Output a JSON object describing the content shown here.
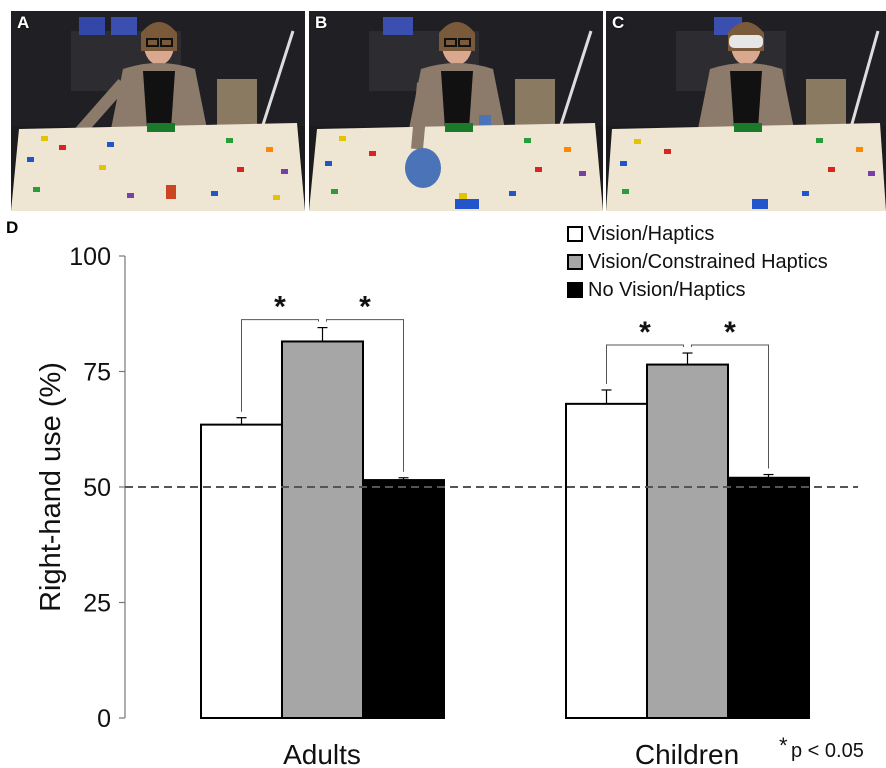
{
  "panels": [
    {
      "label": "A",
      "condition": "vision"
    },
    {
      "label": "B",
      "condition": "glove"
    },
    {
      "label": "C",
      "condition": "blindfold"
    }
  ],
  "chart_panel_label": "D",
  "significance_note": {
    "star": "*",
    "text": "p < 0.05"
  },
  "colors": {
    "vision_haptics": "#ffffff",
    "constrained": "#a6a6a6",
    "no_vision": "#000000",
    "reference": "#555555"
  },
  "chart_data": {
    "type": "bar",
    "categories": [
      "Adults",
      "Children"
    ],
    "ylabel": "Right-hand use (%)",
    "ylim": [
      0,
      100
    ],
    "yticks": [
      0,
      25,
      50,
      75,
      100
    ],
    "reference_line": 50,
    "legend_position": "top-right",
    "series": [
      {
        "name": "Vision/Haptics",
        "values": [
          63.5,
          68
        ],
        "errors": [
          1.5,
          3
        ]
      },
      {
        "name": "Vision/Constrained Haptics",
        "values": [
          81.5,
          76.5
        ],
        "errors": [
          3,
          2.5
        ]
      },
      {
        "name": "No Vision/Haptics",
        "values": [
          51.5,
          52
        ],
        "errors": [
          0.5,
          0.7
        ]
      }
    ],
    "significance": [
      {
        "category": "Adults",
        "from": 0,
        "to": 1,
        "label": "*"
      },
      {
        "category": "Adults",
        "from": 1,
        "to": 2,
        "label": "*"
      },
      {
        "category": "Children",
        "from": 0,
        "to": 1,
        "label": "*"
      },
      {
        "category": "Children",
        "from": 1,
        "to": 2,
        "label": "*"
      }
    ]
  }
}
